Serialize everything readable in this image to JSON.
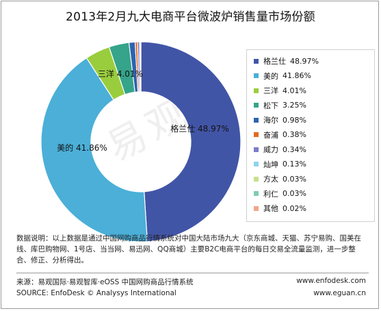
{
  "title": "2013年2月九大电商平台微波炉销售量市场份额",
  "chart_data": {
    "type": "pie",
    "donut": true,
    "categories": [
      "格兰仕",
      "美的",
      "三洋",
      "松下",
      "海尔",
      "奋浦",
      "威力",
      "灿坤",
      "方太",
      "利仁",
      "其他"
    ],
    "values": [
      48.97,
      41.86,
      4.01,
      3.25,
      0.98,
      0.38,
      0.34,
      0.13,
      0.03,
      0.03,
      0.02
    ],
    "labels": [
      "48.97%",
      "41.86%",
      "4.01%",
      "3.25%",
      "0.98%",
      "0.38%",
      "0.34%",
      "0.13%",
      "0.03%",
      "0.03%",
      "0.02%"
    ],
    "colors": [
      "#4155a6",
      "#4bafd8",
      "#9acd3d",
      "#35a48a",
      "#2d63b0",
      "#e26a1f",
      "#7c7cc8",
      "#8fd2ee",
      "#c6e08a",
      "#7ecbb6",
      "#f2a58a"
    ],
    "legend_position": "right",
    "slice_labels": [
      {
        "name": "格兰仕",
        "pct": "48.97%"
      },
      {
        "name": "美的",
        "pct": "41.86%"
      },
      {
        "name": "三洋",
        "pct": "4.01%"
      }
    ]
  },
  "note": "数据说明：以上数据是通过中国网购商品行情系统对中国大陆市场九大（京东商城、天猫、苏宁易购、国美在线、库巴购物网、1号店、当当网、易迅网、QQ商城）主要B2C电商平台的每日交易全流量监测，进一步整合、修正、分析得出。",
  "watermark": "易观智",
  "footer": {
    "source_cn": "来源：易观国际·易观智库·eOSS 中国网购商品行情系统",
    "source_en": "SOURCE: EnfoDesk © Analysys International",
    "site1": "www.enfodesk.com",
    "site2": "www.eguan.cn"
  }
}
